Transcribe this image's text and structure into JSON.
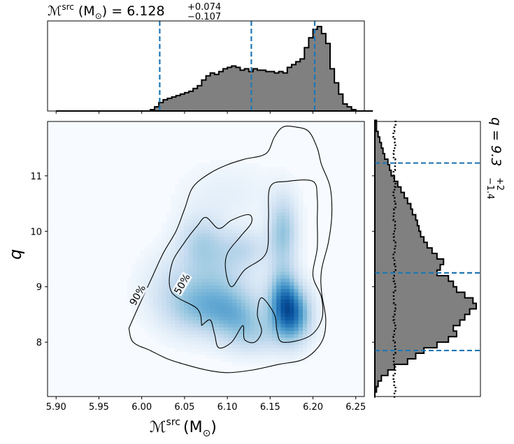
{
  "chart_data": [
    {
      "panel": "top-marginal",
      "type": "histogram",
      "title_text": "6.128",
      "title_upper": "+0.074",
      "title_lower": "−0.107",
      "xlim": [
        5.89,
        6.26
      ],
      "bins_start": 5.9,
      "bin_width": 0.005,
      "counts": [
        0,
        0,
        0,
        0,
        0,
        0,
        0,
        0,
        0,
        0,
        0,
        0,
        0,
        0,
        0,
        0,
        0,
        0,
        0,
        0,
        0,
        0,
        1,
        3,
        6,
        8,
        9,
        10,
        11,
        12,
        13,
        14,
        16,
        18,
        22,
        25,
        27,
        26,
        28,
        30,
        31,
        32,
        31,
        29,
        30,
        28,
        30,
        29,
        29,
        28,
        28,
        27,
        28,
        27,
        31,
        33,
        35,
        37,
        45,
        52,
        58,
        60,
        55,
        48,
        30,
        20,
        12,
        5,
        3,
        1,
        0,
        0,
        0,
        0
      ],
      "quantile_lines": [
        6.021,
        6.128,
        6.202
      ],
      "line_color": "#1f77b4",
      "fill_color": "#808080"
    },
    {
      "panel": "joint",
      "type": "heatmap",
      "xlim": [
        5.89,
        6.26
      ],
      "ylim": [
        7.02,
        11.98
      ],
      "xticks": [
        5.9,
        5.95,
        6.0,
        6.05,
        6.1,
        6.15,
        6.2,
        6.25
      ],
      "yticks": [
        8,
        9,
        10,
        11
      ],
      "xtick_labels": [
        "5.90",
        "5.95",
        "6.00",
        "6.05",
        "6.10",
        "6.15",
        "6.20",
        "6.25"
      ],
      "ytick_labels": [
        "8",
        "9",
        "10",
        "11"
      ],
      "xlabel_main": "ℳ",
      "xlabel_sup": "src",
      "xlabel_unit": "(M",
      "xlabel_unit_sub": "⊙",
      "xlabel_close": ")",
      "ylabel": "q",
      "colormap": "Blues",
      "density_blobs": [
        {
          "x": 6.175,
          "y": 8.5,
          "sx": 0.016,
          "sy": 0.35,
          "w": 1.0
        },
        {
          "x": 6.165,
          "y": 8.9,
          "sx": 0.012,
          "sy": 0.35,
          "w": 0.55
        },
        {
          "x": 6.165,
          "y": 10.0,
          "sx": 0.012,
          "sy": 0.45,
          "w": 0.55
        },
        {
          "x": 6.11,
          "y": 8.5,
          "sx": 0.025,
          "sy": 0.3,
          "w": 0.45
        },
        {
          "x": 6.09,
          "y": 9.0,
          "sx": 0.03,
          "sy": 0.45,
          "w": 0.4
        },
        {
          "x": 6.07,
          "y": 9.8,
          "sx": 0.02,
          "sy": 0.35,
          "w": 0.4
        },
        {
          "x": 6.06,
          "y": 8.6,
          "sx": 0.025,
          "sy": 0.35,
          "w": 0.35
        },
        {
          "x": 6.12,
          "y": 9.7,
          "sx": 0.02,
          "sy": 0.25,
          "w": 0.3
        },
        {
          "x": 6.03,
          "y": 9.0,
          "sx": 0.025,
          "sy": 0.45,
          "w": 0.2
        },
        {
          "x": 6.1,
          "y": 10.7,
          "sx": 0.04,
          "sy": 0.4,
          "w": 0.12
        },
        {
          "x": 6.13,
          "y": 8.1,
          "sx": 0.025,
          "sy": 0.25,
          "w": 0.3
        }
      ],
      "contours": [
        {
          "label": "90%",
          "points": [
            [
              5.985,
              8.25
            ],
            [
              5.995,
              8.6
            ],
            [
              6.01,
              9.1
            ],
            [
              6.025,
              9.6
            ],
            [
              6.04,
              10.0
            ],
            [
              6.05,
              10.4
            ],
            [
              6.06,
              10.8
            ],
            [
              6.08,
              11.05
            ],
            [
              6.1,
              11.2
            ],
            [
              6.12,
              11.3
            ],
            [
              6.145,
              11.4
            ],
            [
              6.155,
              11.7
            ],
            [
              6.165,
              11.88
            ],
            [
              6.18,
              11.88
            ],
            [
              6.195,
              11.8
            ],
            [
              6.205,
              11.5
            ],
            [
              6.21,
              11.2
            ],
            [
              6.22,
              10.8
            ],
            [
              6.222,
              10.3
            ],
            [
              6.218,
              9.8
            ],
            [
              6.21,
              9.3
            ],
            [
              6.21,
              8.9
            ],
            [
              6.215,
              8.4
            ],
            [
              6.21,
              8.0
            ],
            [
              6.19,
              7.7
            ],
            [
              6.16,
              7.6
            ],
            [
              6.13,
              7.5
            ],
            [
              6.1,
              7.45
            ],
            [
              6.075,
              7.5
            ],
            [
              6.05,
              7.6
            ],
            [
              6.03,
              7.7
            ],
            [
              6.01,
              7.85
            ],
            [
              5.99,
              8.0
            ],
            [
              5.985,
              8.25
            ]
          ],
          "label_pos": [
            5.995,
            8.85
          ],
          "label_angle": -60
        },
        {
          "label": "50%",
          "points": [
            [
              6.07,
              8.3
            ],
            [
              6.065,
              8.6
            ],
            [
              6.035,
              8.9
            ],
            [
              6.035,
              9.4
            ],
            [
              6.05,
              9.8
            ],
            [
              6.065,
              10.1
            ],
            [
              6.075,
              10.25
            ],
            [
              6.09,
              10.05
            ],
            [
              6.105,
              10.2
            ],
            [
              6.125,
              10.3
            ],
            [
              6.128,
              10.15
            ],
            [
              6.115,
              9.9
            ],
            [
              6.1,
              9.6
            ],
            [
              6.098,
              9.3
            ],
            [
              6.105,
              9.0
            ],
            [
              6.12,
              9.3
            ],
            [
              6.145,
              9.6
            ],
            [
              6.148,
              10.2
            ],
            [
              6.15,
              10.8
            ],
            [
              6.17,
              10.9
            ],
            [
              6.2,
              10.9
            ],
            [
              6.205,
              10.6
            ],
            [
              6.205,
              10.2
            ],
            [
              6.205,
              9.7
            ],
            [
              6.2,
              9.2
            ],
            [
              6.21,
              8.8
            ],
            [
              6.21,
              8.4
            ],
            [
              6.195,
              8.1
            ],
            [
              6.165,
              8.0
            ],
            [
              6.158,
              8.2
            ],
            [
              6.155,
              8.5
            ],
            [
              6.14,
              8.8
            ],
            [
              6.135,
              8.5
            ],
            [
              6.14,
              8.2
            ],
            [
              6.132,
              8.0
            ],
            [
              6.12,
              8.05
            ],
            [
              6.118,
              8.3
            ],
            [
              6.105,
              8.0
            ],
            [
              6.09,
              7.9
            ],
            [
              6.085,
              8.15
            ],
            [
              6.08,
              8.4
            ],
            [
              6.07,
              8.3
            ]
          ],
          "label_pos": [
            6.047,
            9.05
          ],
          "label_angle": -60
        }
      ]
    },
    {
      "panel": "right-marginal",
      "type": "histogram-horizontal",
      "title_prefix": "q = 9.3",
      "title_upper": "+2",
      "title_lower": "−1.4",
      "ylim": [
        7.02,
        11.98
      ],
      "bins_start": 7.0,
      "bin_width": 0.1,
      "counts": [
        0,
        1,
        2,
        4,
        8,
        12,
        20,
        25,
        30,
        38,
        45,
        50,
        48,
        52,
        55,
        58,
        62,
        60,
        55,
        50,
        48,
        45,
        38,
        40,
        42,
        38,
        35,
        32,
        30,
        28,
        27,
        26,
        25,
        23,
        22,
        20,
        18,
        16,
        14,
        12,
        10,
        9,
        8,
        6,
        5,
        4,
        3,
        2,
        1,
        1
      ],
      "prior_counts": [
        12,
        12,
        12,
        12,
        12,
        12,
        12,
        12,
        12,
        12,
        12,
        12,
        12,
        12,
        12,
        12,
        12,
        12,
        12,
        12,
        12,
        12,
        12,
        12,
        12,
        12,
        12,
        12,
        12,
        12,
        12,
        12,
        12,
        12,
        12,
        12,
        12,
        12,
        12,
        12,
        12,
        12,
        12,
        12,
        12,
        12,
        12,
        12,
        12,
        12
      ],
      "quantile_lines": [
        7.85,
        9.25,
        11.23
      ],
      "line_color": "#1f77b4",
      "fill_color": "#808080"
    }
  ]
}
